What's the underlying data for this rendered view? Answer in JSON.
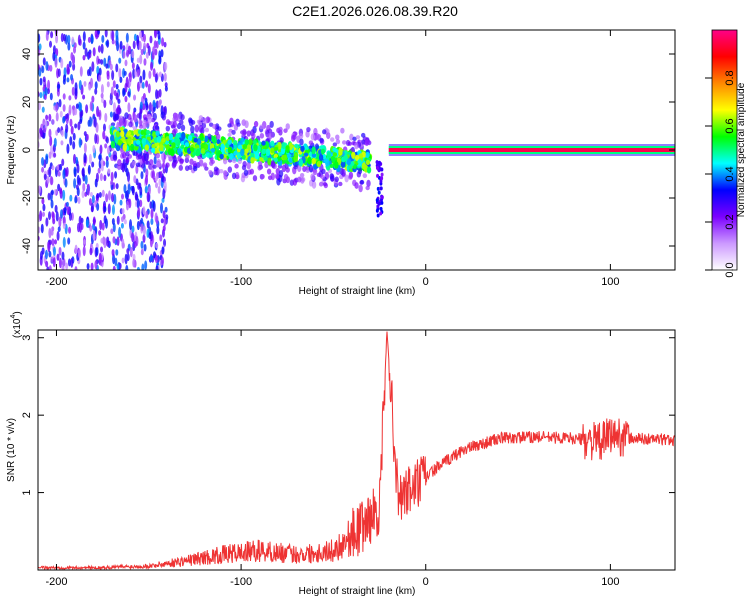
{
  "figure_title": "C2E1.2026.026.08.39.R20",
  "chart_data": [
    {
      "type": "heatmap",
      "xlabel": "Height of straight line (km)",
      "ylabel": "Frequency (Hz)",
      "xlim": [
        -210,
        135
      ],
      "ylim": [
        -50,
        50
      ],
      "xticks": [
        -200,
        -100,
        0,
        100
      ],
      "yticks": [
        -40,
        -20,
        0,
        20,
        40
      ],
      "colorbar": {
        "label": "Normalized spectral amplitude",
        "range": [
          0,
          1
        ],
        "ticks": [
          "0.0",
          "0.2",
          "0.4",
          "0.6",
          "0.8"
        ],
        "colors": [
          "#ffffff",
          "#cc99ff",
          "#7b00ff",
          "#0000ff",
          "#00ffff",
          "#00ff00",
          "#ffff00",
          "#ff8800",
          "#ff0000",
          "#ff0088"
        ]
      },
      "features": [
        {
          "name": "broadband noise",
          "x_range": [
            -210,
            -140
          ],
          "freq_range": [
            -50,
            50
          ],
          "amplitude": 0.1
        },
        {
          "name": "dispersed band",
          "x_range": [
            -170,
            -30
          ],
          "freq_center_start": 5,
          "freq_center_end": -5,
          "amplitude": 0.45
        },
        {
          "name": "low tail",
          "x": -25,
          "freq_range": [
            -28,
            -5
          ],
          "amplitude": 0.2
        },
        {
          "name": "carrier line",
          "x_range": [
            -20,
            135
          ],
          "freq": 0,
          "amplitude": 0.95
        }
      ]
    },
    {
      "type": "line",
      "xlabel": "Height of straight line (km)",
      "ylabel": "SNR (10 * v/v)",
      "scale_label": "(x10",
      "scale_exponent": "4",
      "xlim": [
        -210,
        135
      ],
      "ylim": [
        0,
        3.1
      ],
      "xticks": [
        -200,
        -100,
        0,
        100
      ],
      "yticks": [
        1,
        2,
        3
      ],
      "color": "#ee3333",
      "series": [
        {
          "x": [
            -210,
            -180,
            -150,
            -130,
            -110,
            -90,
            -70,
            -50,
            -35,
            -25,
            -21,
            -15,
            -5,
            5,
            20,
            40,
            60,
            80,
            95,
            100,
            110,
            135
          ],
          "y": [
            0.03,
            0.03,
            0.05,
            0.12,
            0.2,
            0.25,
            0.2,
            0.25,
            0.55,
            0.8,
            3.1,
            0.9,
            1.1,
            1.3,
            1.55,
            1.7,
            1.72,
            1.7,
            1.65,
            1.75,
            1.7,
            1.68
          ]
        }
      ]
    }
  ]
}
